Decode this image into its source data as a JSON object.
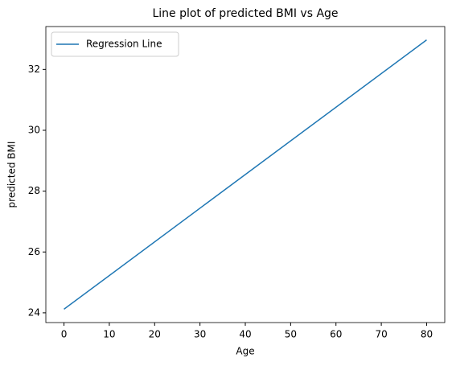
{
  "chart_data": {
    "type": "line",
    "title": "Line plot of predicted BMI vs Age",
    "xlabel": "Age",
    "ylabel": "predicted BMI",
    "x": [
      0,
      80
    ],
    "series": [
      {
        "name": "Regression Line",
        "color": "#1f77b4",
        "values": [
          24.12,
          32.97
        ]
      }
    ],
    "xlim": [
      -4,
      84
    ],
    "xticks": [
      0,
      10,
      20,
      30,
      40,
      50,
      60,
      70,
      80
    ],
    "ylim": [
      23.68,
      33.41
    ],
    "yticks": [
      24,
      26,
      28,
      30,
      32
    ],
    "grid": false,
    "legend": "upper left"
  }
}
